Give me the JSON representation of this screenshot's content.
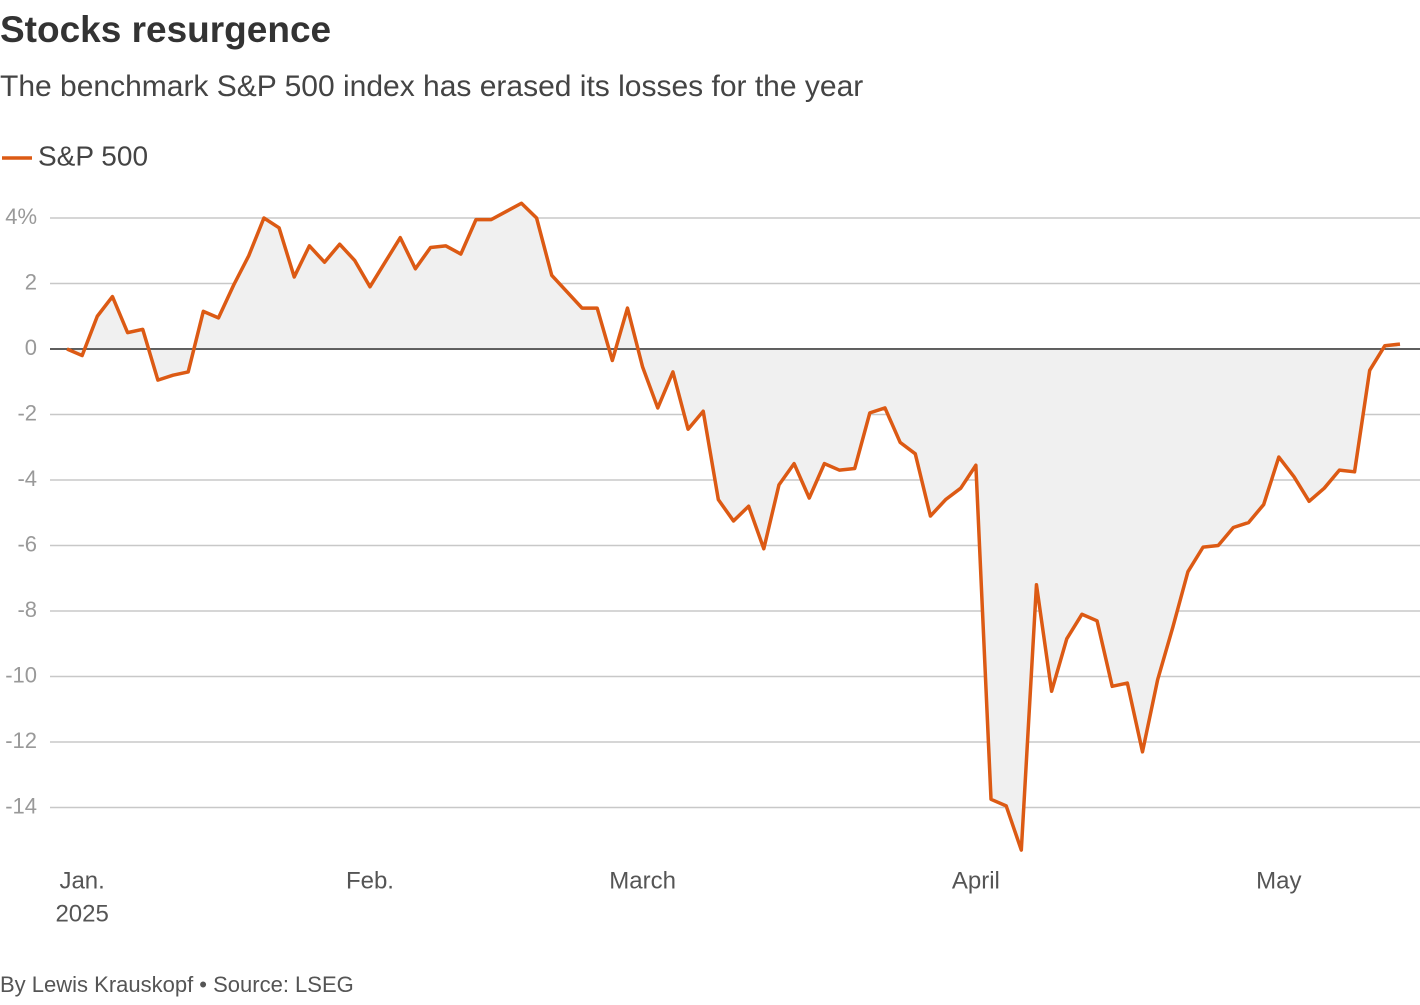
{
  "chart_data": {
    "type": "line",
    "title": "Stocks resurgence",
    "subtitle": "The benchmark S&P 500 index has erased its losses for the year",
    "source": "By Lewis Krauskopf • Source: LSEG",
    "year": "2025",
    "categories": [
      null,
      "Jan.",
      null,
      null,
      null,
      null,
      null,
      null,
      null,
      null,
      null,
      null,
      null,
      null,
      null,
      null,
      null,
      null,
      null,
      null,
      "Feb.",
      null,
      null,
      null,
      null,
      null,
      null,
      null,
      null,
      null,
      null,
      null,
      null,
      null,
      null,
      null,
      null,
      null,
      "March",
      null,
      null,
      null,
      null,
      null,
      null,
      null,
      null,
      null,
      null,
      null,
      null,
      null,
      null,
      null,
      null,
      null,
      null,
      null,
      null,
      null,
      "April",
      null,
      null,
      null,
      null,
      null,
      null,
      null,
      null,
      null,
      null,
      null,
      null,
      null,
      null,
      null,
      null,
      null,
      null,
      null,
      "May",
      null,
      null,
      null,
      null,
      null,
      null,
      null,
      null
    ],
    "series": [
      {
        "name": "S&P 500",
        "color": "#dc5a14",
        "values": [
          0,
          -0.2,
          1.0,
          1.6,
          0.5,
          0.6,
          -0.95,
          -0.8,
          -0.7,
          1.15,
          0.95,
          1.95,
          2.85,
          4.0,
          3.7,
          2.2,
          3.15,
          2.65,
          3.2,
          2.7,
          1.9,
          2.65,
          3.4,
          2.45,
          3.1,
          3.15,
          2.9,
          3.95,
          3.95,
          4.2,
          4.45,
          4.0,
          2.25,
          1.75,
          1.25,
          1.25,
          -0.35,
          1.25,
          -0.55,
          -1.8,
          -0.7,
          -2.45,
          -1.9,
          -4.6,
          -5.25,
          -4.8,
          -6.1,
          -4.15,
          -3.5,
          -4.55,
          -3.5,
          -3.7,
          -3.65,
          -1.95,
          -1.8,
          -2.85,
          -3.2,
          -5.1,
          -4.6,
          -4.25,
          -3.55,
          -13.75,
          -13.95,
          -15.3,
          -7.2,
          -10.45,
          -8.85,
          -8.1,
          -8.3,
          -10.3,
          -10.2,
          -12.3,
          -10.1,
          -8.5,
          -6.8,
          -6.05,
          -6.0,
          -5.45,
          -5.3,
          -4.75,
          -3.3,
          -3.9,
          -4.65,
          -4.25,
          -3.7,
          -3.75,
          -0.65,
          0.1,
          0.15
        ]
      }
    ],
    "ylim": [
      -15.5,
      4.6
    ],
    "yticks": [
      {
        "value": 4,
        "label": "4%"
      },
      2,
      0,
      -2,
      -4,
      -6,
      -8,
      -10,
      -12,
      -14
    ],
    "grid": true,
    "area_color": "#f0f0f0"
  }
}
